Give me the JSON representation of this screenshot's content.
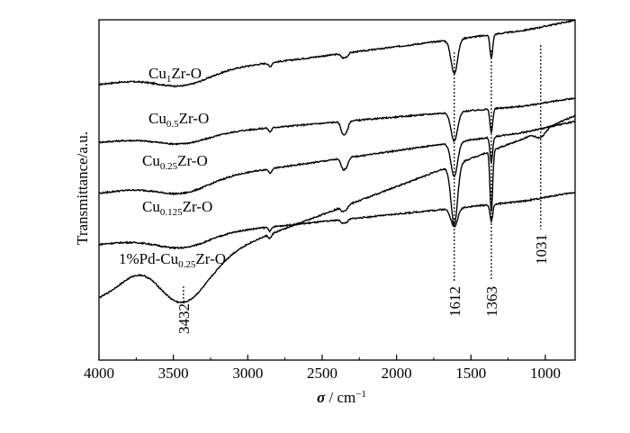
{
  "chart_data": {
    "type": "line",
    "title": "",
    "xlabel": "σ / cm⁻¹",
    "xlabel_symbol": "σ",
    "xlabel_unit": "/ cm",
    "xlabel_exp": "−1",
    "ylabel": "Transmittance/a.u.",
    "xlim": [
      4000,
      800
    ],
    "x_reversed": true,
    "x_ticks": [
      4000,
      3500,
      3000,
      2500,
      2000,
      1500,
      1000
    ],
    "ylim": [
      0,
      1
    ],
    "y_ticks_shown": false,
    "grid": false,
    "legend": "inline labels",
    "series": [
      {
        "name": "Cu1Zr-O",
        "label_parts": [
          "Cu",
          "1",
          "Zr-O"
        ],
        "baseline": 0.81,
        "slope": 5.55e-05,
        "ir_dip": 0.035,
        "pd_bump": 0,
        "d1612": 0.1,
        "d1363": 0.07,
        "d1031": 0,
        "band2350": 0.012
      },
      {
        "name": "Cu0.5Zr-O",
        "label_parts": [
          "Cu",
          "0.5",
          "Zr-O"
        ],
        "baseline": 0.64,
        "slope": 3.72e-05,
        "ir_dip": 0.025,
        "pd_bump": 0,
        "d1612": 0.085,
        "d1363": 0.07,
        "d1031": 0,
        "band2350": 0.035
      },
      {
        "name": "Cu0.25Zr-O",
        "label_parts": [
          "Cu",
          "0.25",
          "Zr-O"
        ],
        "baseline": 0.49,
        "slope": 6.27e-05,
        "ir_dip": 0.035,
        "pd_bump": 0,
        "d1612": 0.1,
        "d1363": 0.075,
        "d1031": 0,
        "band2350": 0.03
      },
      {
        "name": "Cu0.125Zr-O",
        "label_parts": [
          "Cu",
          "0.125",
          "Zr-O"
        ],
        "baseline": 0.34,
        "slope": 4.45e-05,
        "ir_dip": 0.035,
        "pd_bump": 0,
        "d1612": 0.055,
        "d1363": 0.05,
        "d1031": 0,
        "band2350": 0.01
      },
      {
        "name": "1%Pd-Cu0.25Zr-O",
        "label_parts": [
          "1%Pd-Cu",
          "0.25",
          "Zr-O"
        ],
        "baseline": 0.18,
        "slope": 0.000165,
        "ir_dip": 0.11,
        "pd_bump": 0.05,
        "d1612": 0.175,
        "d1363": 0.18,
        "d1031": 0.02,
        "band2350": 0.012
      }
    ],
    "annotations": [
      {
        "x": 3432,
        "label": "3432"
      },
      {
        "x": 1612,
        "label": "1612"
      },
      {
        "x": 1363,
        "label": "1363"
      },
      {
        "x": 1031,
        "label": "1031"
      }
    ]
  }
}
